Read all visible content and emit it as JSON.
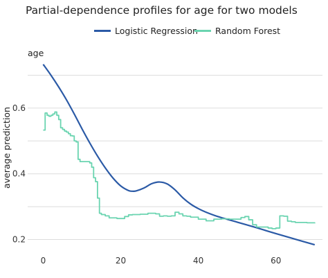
{
  "chart_data": {
    "type": "line",
    "title": "Partial-dependence profiles for age for two models",
    "panel_label": "age",
    "ylabel": "average prediction",
    "xlabel": "",
    "xlim": [
      -4,
      72
    ],
    "ylim": [
      0.18,
      0.76
    ],
    "xticks": [
      0,
      20,
      40,
      60
    ],
    "yticks": [
      0.2,
      0.4,
      0.6
    ],
    "grid": "horizontal",
    "legend_position": "top",
    "series": [
      {
        "name": "Logistic Regression",
        "color": "#2b5aa6",
        "step": false,
        "x": [
          0,
          2,
          4,
          6,
          8,
          10,
          12,
          14,
          16,
          18,
          20,
          22,
          23,
          24,
          26,
          28,
          30,
          32,
          34,
          36,
          38,
          40,
          42,
          45,
          50,
          55,
          60,
          65,
          70
        ],
        "y": [
          0.733,
          0.7,
          0.664,
          0.625,
          0.582,
          0.537,
          0.494,
          0.454,
          0.418,
          0.387,
          0.363,
          0.349,
          0.347,
          0.348,
          0.357,
          0.37,
          0.375,
          0.369,
          0.351,
          0.327,
          0.308,
          0.294,
          0.283,
          0.27,
          0.253,
          0.236,
          0.218,
          0.201,
          0.184
        ]
      },
      {
        "name": "Random Forest",
        "color": "#6ad4b0",
        "step": true,
        "x": [
          0,
          0.5,
          1,
          1.5,
          2,
          2.5,
          3,
          3.5,
          4,
          4.5,
          5,
          5.5,
          6,
          6.5,
          7,
          7.5,
          8,
          8.5,
          9,
          9.5,
          10,
          11,
          12,
          12.5,
          13,
          13.5,
          14,
          14.5,
          15,
          16,
          17,
          18,
          19,
          20,
          21,
          22,
          23,
          25,
          27,
          29,
          30,
          31,
          32,
          33,
          34,
          35,
          36,
          37,
          38,
          40,
          42,
          44,
          46,
          48,
          50,
          51,
          52,
          53,
          54,
          55,
          56,
          58,
          59,
          60,
          61,
          62,
          63,
          64,
          65,
          66,
          68,
          70
        ],
        "y": [
          0.533,
          0.585,
          0.578,
          0.575,
          0.578,
          0.582,
          0.588,
          0.578,
          0.565,
          0.54,
          0.535,
          0.53,
          0.527,
          0.522,
          0.516,
          0.515,
          0.5,
          0.497,
          0.444,
          0.437,
          0.437,
          0.437,
          0.433,
          0.42,
          0.388,
          0.376,
          0.326,
          0.28,
          0.276,
          0.272,
          0.266,
          0.266,
          0.264,
          0.264,
          0.27,
          0.275,
          0.276,
          0.277,
          0.28,
          0.278,
          0.271,
          0.272,
          0.271,
          0.272,
          0.283,
          0.278,
          0.272,
          0.271,
          0.268,
          0.262,
          0.257,
          0.262,
          0.263,
          0.262,
          0.262,
          0.267,
          0.27,
          0.26,
          0.245,
          0.238,
          0.238,
          0.235,
          0.233,
          0.235,
          0.272,
          0.271,
          0.256,
          0.254,
          0.252,
          0.252,
          0.251,
          0.249
        ]
      }
    ]
  }
}
